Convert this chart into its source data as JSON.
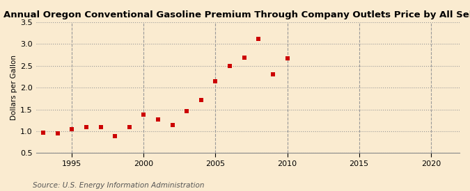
{
  "title": "Annual Oregon Conventional Gasoline Premium Through Company Outlets Price by All Sellers",
  "ylabel": "Dollars per Gallon",
  "source": "Source: U.S. Energy Information Administration",
  "years": [
    1993,
    1994,
    1995,
    1996,
    1997,
    1998,
    1999,
    2000,
    2001,
    2002,
    2003,
    2004,
    2005,
    2006,
    2007,
    2008,
    2009,
    2010
  ],
  "values": [
    0.97,
    0.95,
    1.05,
    1.09,
    1.1,
    0.89,
    1.09,
    1.38,
    1.27,
    1.15,
    1.46,
    1.72,
    2.14,
    2.49,
    2.68,
    3.12,
    2.3,
    2.67
  ],
  "xlim": [
    1992.5,
    2022
  ],
  "ylim": [
    0.5,
    3.5
  ],
  "xticks": [
    1995,
    2000,
    2005,
    2010,
    2015,
    2020
  ],
  "yticks": [
    0.5,
    1.0,
    1.5,
    2.0,
    2.5,
    3.0,
    3.5
  ],
  "marker_color": "#cc0000",
  "marker": "s",
  "marker_size": 5,
  "background_color": "#faebd0",
  "grid_color": "#999999",
  "title_fontsize": 9.5,
  "axis_label_fontsize": 7.5,
  "tick_fontsize": 8,
  "source_fontsize": 7.5
}
